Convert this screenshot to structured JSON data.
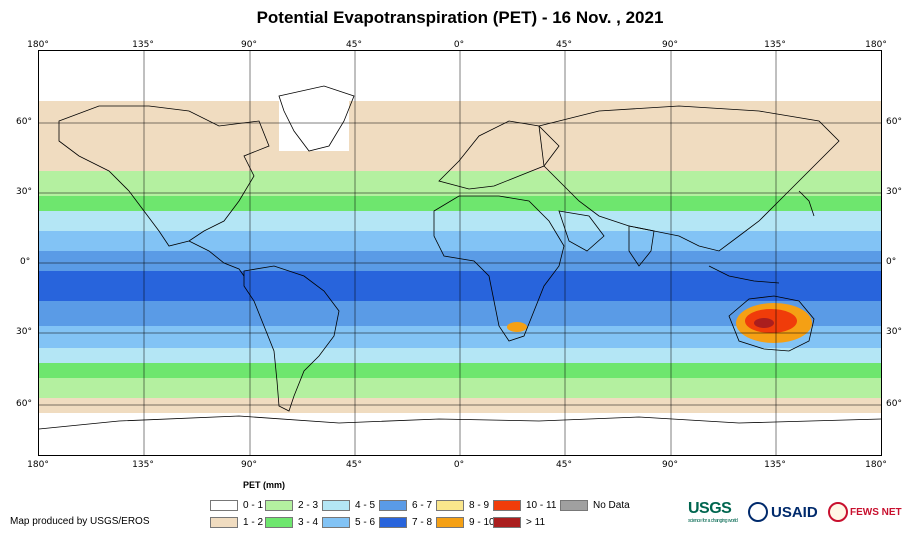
{
  "title": "Potential Evapotranspiration (PET) - 16 Nov. , 2021",
  "longitude_labels": [
    "180°",
    "135°",
    "90°",
    "45°",
    "0°",
    "45°",
    "90°",
    "135°",
    "180°"
  ],
  "latitude_labels": [
    "60°",
    "30°",
    "0°",
    "30°",
    "60°"
  ],
  "legend": {
    "title": "PET (mm)",
    "items": [
      {
        "label": "0 - 1",
        "color": "#ffffff"
      },
      {
        "label": "1 - 2",
        "color": "#f0dcc0"
      },
      {
        "label": "2 - 3",
        "color": "#b4f0a0"
      },
      {
        "label": "3 - 4",
        "color": "#6ee66e"
      },
      {
        "label": "4 - 5",
        "color": "#b4e6f5"
      },
      {
        "label": "5 - 6",
        "color": "#82c3f5"
      },
      {
        "label": "6 - 7",
        "color": "#5a9be6"
      },
      {
        "label": "7 - 8",
        "color": "#2864dc"
      },
      {
        "label": "8 - 9",
        "color": "#fae68c"
      },
      {
        "label": "9 - 10",
        "color": "#f5a014"
      },
      {
        "label": "10 - 11",
        "color": "#f03c0a"
      },
      {
        "label": "> 11",
        "color": "#aa1e1e"
      },
      {
        "label": "No Data",
        "color": "#a0a0a0"
      }
    ]
  },
  "credit": "Map produced by USGS/EROS",
  "logos": {
    "usgs": "USGS",
    "usgs_tagline": "science for a changing world",
    "usaid": "USAID",
    "fews": "FEWS NET"
  }
}
